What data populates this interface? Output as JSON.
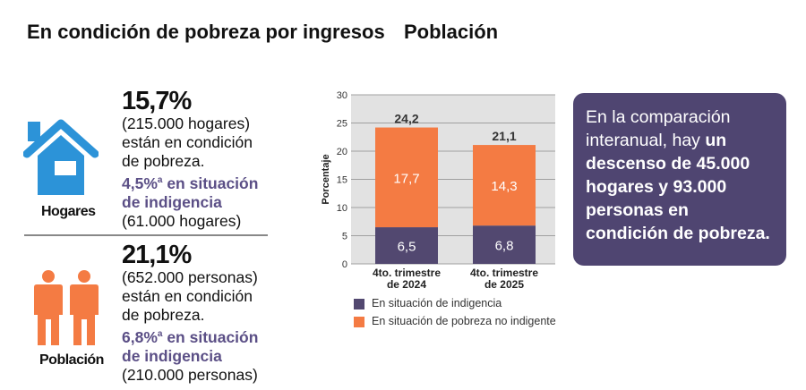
{
  "left": {
    "title": "En condición de pobreza por ingresos",
    "hogares": {
      "label": "Hogares",
      "pct": "15,7%",
      "count": "(215.000 hogares)",
      "line1": "están en condición",
      "line2": "de pobreza.",
      "ind_pct": "4,5%",
      "sup": "a",
      "ind_text1": " en situación",
      "ind_text2": "de indigencia",
      "ind_count": "(61.000 hogares)",
      "icon_color": "#2c93d8"
    },
    "poblacion": {
      "label": "Población",
      "pct": "21,1%",
      "count": "(652.000 personas)",
      "line1": "están en condición",
      "line2": "de pobreza.",
      "ind_pct": "6,8%",
      "sup": "a",
      "ind_text1": " en situación",
      "ind_text2": "de indigencia",
      "ind_count": "(210.000 personas)",
      "icon_color": "#f47b43"
    }
  },
  "chart_data": {
    "type": "bar",
    "stacked": true,
    "title": "Población",
    "ylabel": "Porcentaje",
    "ylim": [
      0,
      30
    ],
    "yticks": [
      "0",
      "5",
      "10",
      "15",
      "20",
      "25",
      "30"
    ],
    "grid": true,
    "categories": [
      "4to. trimestre de 2024",
      "4to. trimestre de 2025"
    ],
    "category_lines": [
      [
        "4to. trimestre",
        "de 2024"
      ],
      [
        "4to. trimestre",
        "de 2025"
      ]
    ],
    "series": [
      {
        "name": "En situación de indigencia",
        "values": [
          6.5,
          6.8
        ],
        "labels": [
          "6,5",
          "6,8"
        ],
        "color": "#524870"
      },
      {
        "name": "En situación de pobreza no indigente",
        "values": [
          17.7,
          14.3
        ],
        "labels": [
          "17,7",
          "14,3"
        ],
        "color": "#f47b43"
      }
    ],
    "totals": [
      "24,2",
      "21,1"
    ],
    "legend": "bottom"
  },
  "callout": {
    "plain": "En la comparación interanual, hay ",
    "bold": "un descenso de 45.000 hogares y 93.000 personas en condición de pobreza.",
    "bg": "#4f4571"
  }
}
